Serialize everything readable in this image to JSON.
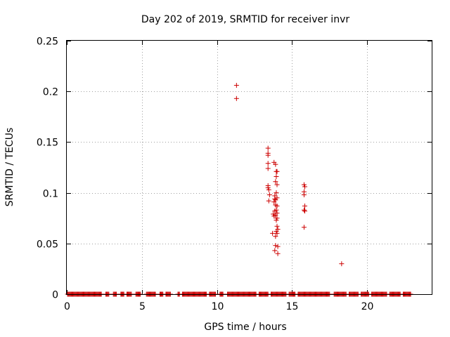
{
  "chart_data": {
    "type": "scatter",
    "title": "Day 202 of 2019, SRMTID for receiver invr",
    "xlabel": "GPS time / hours",
    "ylabel": "SRMTID / TECUs",
    "xlim": [
      0,
      24.3
    ],
    "ylim": [
      0,
      0.25
    ],
    "xticks": [
      0,
      5,
      10,
      15,
      20
    ],
    "xtick_labels": [
      "0",
      "5",
      "10",
      "15",
      "20"
    ],
    "yticks": [
      0,
      0.05,
      0.1,
      0.15,
      0.2,
      0.25
    ],
    "ytick_labels": [
      "0",
      "0.05",
      "0.1",
      "0.15",
      "0.2",
      "0.25"
    ],
    "grid": true,
    "marker": "+",
    "color": "#cc0000",
    "series": [
      {
        "points": [
          [
            11.3,
            0.206
          ],
          [
            11.3,
            0.193
          ],
          [
            13.4,
            0.144
          ],
          [
            13.4,
            0.139
          ],
          [
            13.4,
            0.137
          ],
          [
            13.4,
            0.129
          ],
          [
            13.4,
            0.124
          ],
          [
            13.4,
            0.107
          ],
          [
            13.4,
            0.105
          ],
          [
            13.45,
            0.103
          ],
          [
            13.5,
            0.098
          ],
          [
            13.45,
            0.092
          ],
          [
            13.8,
            0.13
          ],
          [
            13.9,
            0.128
          ],
          [
            13.95,
            0.121
          ],
          [
            14.0,
            0.121
          ],
          [
            13.95,
            0.116
          ],
          [
            13.9,
            0.111
          ],
          [
            14.0,
            0.108
          ],
          [
            13.95,
            0.1
          ],
          [
            13.85,
            0.097
          ],
          [
            13.85,
            0.094
          ],
          [
            13.9,
            0.093
          ],
          [
            14.0,
            0.095
          ],
          [
            13.8,
            0.091
          ],
          [
            13.9,
            0.088
          ],
          [
            14.0,
            0.087
          ],
          [
            13.85,
            0.082
          ],
          [
            13.95,
            0.083
          ],
          [
            14.0,
            0.08
          ],
          [
            13.75,
            0.079
          ],
          [
            13.8,
            0.077
          ],
          [
            13.9,
            0.078
          ],
          [
            14.0,
            0.075
          ],
          [
            13.95,
            0.073
          ],
          [
            14.0,
            0.067
          ],
          [
            14.05,
            0.064
          ],
          [
            13.95,
            0.062
          ],
          [
            14.0,
            0.06
          ],
          [
            13.7,
            0.06
          ],
          [
            13.9,
            0.057
          ],
          [
            13.9,
            0.048
          ],
          [
            14.05,
            0.047
          ],
          [
            13.85,
            0.043
          ],
          [
            14.05,
            0.04
          ],
          [
            15.8,
            0.108
          ],
          [
            15.85,
            0.106
          ],
          [
            15.8,
            0.101
          ],
          [
            15.8,
            0.098
          ],
          [
            15.85,
            0.087
          ],
          [
            15.8,
            0.083
          ],
          [
            15.85,
            0.082
          ],
          [
            15.8,
            0.066
          ],
          [
            18.3,
            0.03
          ]
        ]
      }
    ],
    "zero_runs": [
      [
        0.05,
        2.3
      ],
      [
        2.6,
        2.8
      ],
      [
        3.1,
        3.3
      ],
      [
        3.6,
        3.8
      ],
      [
        4.0,
        4.3
      ],
      [
        4.6,
        4.9
      ],
      [
        5.3,
        5.9
      ],
      [
        6.2,
        6.4
      ],
      [
        6.6,
        6.9
      ],
      [
        7.4,
        7.5
      ],
      [
        7.7,
        9.3
      ],
      [
        9.5,
        9.9
      ],
      [
        10.2,
        10.4
      ],
      [
        10.7,
        12.6
      ],
      [
        12.8,
        13.4
      ],
      [
        13.6,
        14.6
      ],
      [
        14.8,
        15.2
      ],
      [
        15.4,
        17.5
      ],
      [
        17.8,
        18.6
      ],
      [
        18.8,
        19.4
      ],
      [
        19.6,
        20.1
      ],
      [
        20.3,
        21.3
      ],
      [
        21.5,
        22.2
      ],
      [
        22.4,
        22.9
      ]
    ]
  }
}
